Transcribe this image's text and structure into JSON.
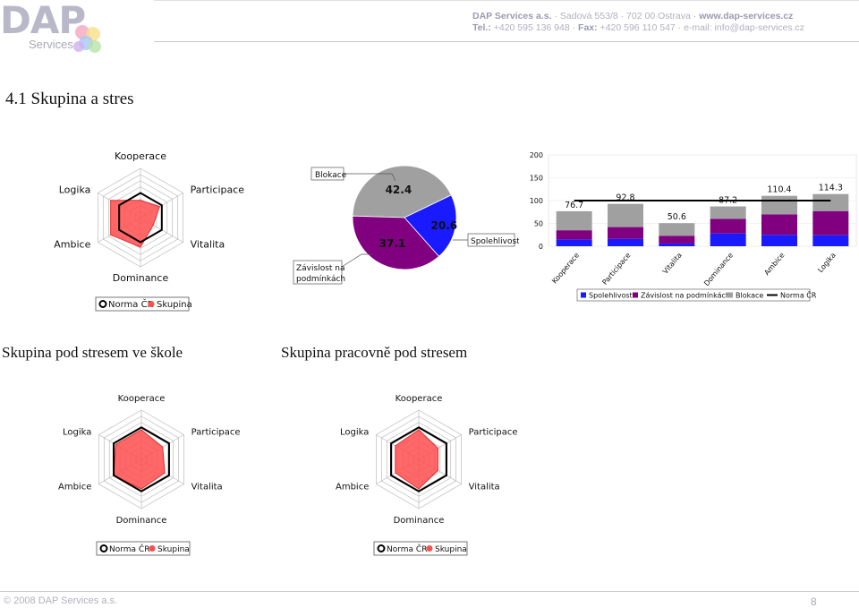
{
  "header": {
    "logo_main": "DAP",
    "logo_sub": "Services",
    "company": "DAP Services a.s.",
    "address": "Sadová 553/8",
    "city": "702 00 Ostrava",
    "web": "www.dap-services.cz",
    "tel_label": "Tel.:",
    "tel": "+420 595 136 948",
    "fax_label": "Fax:",
    "fax": "+420 596 110 547",
    "email": "e-mail: info@dap-services.cz"
  },
  "section_title": "4.1 Skupina a stres",
  "radar_labels": [
    "Kooperace",
    "Participace",
    "Vitalita",
    "Dominance",
    "Ambice",
    "Logika"
  ],
  "legend": {
    "norma": "Norma ČR",
    "skupina": "Skupina"
  },
  "colors": {
    "skupina_fill": "#ff4d4d",
    "blue": "#1a1aff",
    "purple": "#800080",
    "gray": "#a0a0a0"
  },
  "chart_data": [
    {
      "type": "radar",
      "title": "",
      "axes": [
        "Kooperace",
        "Participace",
        "Vitalita",
        "Dominance",
        "Ambice",
        "Logika"
      ],
      "series": [
        {
          "name": "Norma ČR",
          "values": [
            0.5,
            0.5,
            0.5,
            0.5,
            0.5,
            0.5
          ]
        },
        {
          "name": "Skupina",
          "values": [
            0.35,
            0.45,
            0.3,
            0.6,
            0.7,
            0.7
          ]
        }
      ]
    },
    {
      "type": "pie",
      "slices": [
        {
          "label": "Blokace",
          "value": 42.4
        },
        {
          "label": "Spolehlivost",
          "value": 20.6
        },
        {
          "label": "Závislost na podmínkách",
          "value": 37.1
        }
      ]
    },
    {
      "type": "bar",
      "stacked": true,
      "categories": [
        "Kooperace",
        "Participace",
        "Vitalita",
        "Dominance",
        "Ambice",
        "Logika"
      ],
      "series": [
        {
          "name": "Spolehlivost",
          "values": [
            15,
            16,
            6,
            28,
            25,
            24
          ]
        },
        {
          "name": "Závislost na podmínkách",
          "values": [
            20,
            26,
            17,
            32,
            45,
            53
          ]
        },
        {
          "name": "Blokace",
          "values": [
            41.7,
            50.8,
            27.6,
            27.2,
            40.4,
            37.3
          ]
        }
      ],
      "totals": [
        "76.7",
        "92.8",
        "50.6",
        "87.2",
        "110.4",
        "114.3"
      ],
      "norma": 100,
      "ylim": [
        0,
        200
      ],
      "yticks": [
        "0",
        "50",
        "100",
        "150",
        "200"
      ]
    },
    {
      "type": "radar",
      "title": "Skupina pod stresem ve škole",
      "axes": [
        "Kooperace",
        "Participace",
        "Vitalita",
        "Dominance",
        "Ambice",
        "Logika"
      ],
      "series": [
        {
          "name": "Norma ČR",
          "values": [
            0.65,
            0.65,
            0.65,
            0.65,
            0.65,
            0.65
          ]
        },
        {
          "name": "Skupina",
          "values": [
            0.6,
            0.5,
            0.55,
            0.6,
            0.65,
            0.6
          ]
        }
      ]
    },
    {
      "type": "radar",
      "title": "Skupina pracovně pod stresem",
      "axes": [
        "Kooperace",
        "Participace",
        "Vitalita",
        "Dominance",
        "Ambice",
        "Logika"
      ],
      "series": [
        {
          "name": "Norma ČR",
          "values": [
            0.65,
            0.65,
            0.65,
            0.65,
            0.65,
            0.65
          ]
        },
        {
          "name": "Skupina",
          "values": [
            0.6,
            0.45,
            0.45,
            0.6,
            0.55,
            0.55
          ]
        }
      ]
    }
  ],
  "footer": {
    "copyright": "© 2008 DAP Services a.s.",
    "page": "8"
  }
}
